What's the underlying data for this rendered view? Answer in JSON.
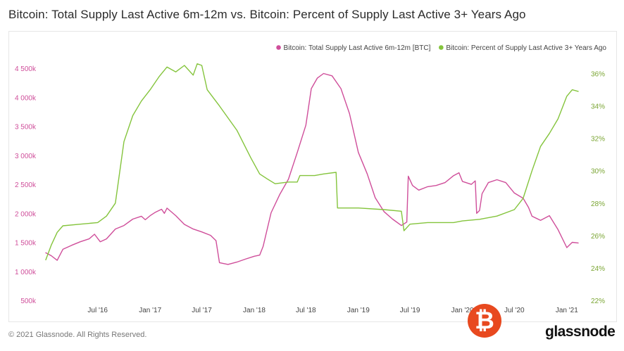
{
  "title": "Bitcoin: Total Supply Last Active 6m-12m vs. Bitcoin: Percent of Supply Last Active 3+ Years Ago",
  "footer": "© 2021 Glassnode. All Rights Reserved.",
  "brand": "glassnode",
  "badge_symbol": "₿",
  "colors": {
    "supply_6m12m": "#cf4e9a",
    "pct_3y": "#84c43c",
    "badge": "#e8491f"
  },
  "chart_data": {
    "type": "line",
    "legend": [
      {
        "label": "Bitcoin: Total Supply Last Active 6m-12m [BTC]",
        "color": "#cf4e9a"
      },
      {
        "label": "Bitcoin: Percent of Supply Last Active 3+ Years Ago",
        "color": "#84c43c"
      }
    ],
    "legend_placement": "top-right",
    "grid": false,
    "x_ticks": [
      "Jul '16",
      "Jan '17",
      "Jul '17",
      "Jan '18",
      "Jul '18",
      "Jan '19",
      "Jul '19",
      "Jan '20",
      "Jul '20",
      "Jan '21"
    ],
    "x_tick_dates": [
      "2016-07-01",
      "2017-01-01",
      "2017-07-01",
      "2018-01-01",
      "2018-07-01",
      "2019-01-01",
      "2019-07-01",
      "2020-01-01",
      "2020-07-01",
      "2021-01-01"
    ],
    "x_range": [
      "2016-01-01",
      "2021-02-10"
    ],
    "y_left": {
      "ticks": [
        "500k",
        "1 000k",
        "1 500k",
        "2 000k",
        "2 500k",
        "3 000k",
        "3 500k",
        "4 000k",
        "4 500k"
      ],
      "range": [
        500000,
        4550000
      ]
    },
    "y_right": {
      "ticks": [
        "22%",
        "24%",
        "26%",
        "28%",
        "30%",
        "32%",
        "34%",
        "36%"
      ],
      "range": [
        22,
        36.5
      ]
    },
    "series": [
      {
        "name": "Bitcoin: Total Supply Last Active 6m-12m [BTC]",
        "axis": "left",
        "color": "#cf4e9a",
        "points": [
          [
            "2016-01-01",
            1320000
          ],
          [
            "2016-01-20",
            1270000
          ],
          [
            "2016-02-10",
            1190000
          ],
          [
            "2016-03-01",
            1380000
          ],
          [
            "2016-04-01",
            1450000
          ],
          [
            "2016-05-01",
            1510000
          ],
          [
            "2016-06-01",
            1560000
          ],
          [
            "2016-06-20",
            1640000
          ],
          [
            "2016-07-10",
            1510000
          ],
          [
            "2016-08-01",
            1560000
          ],
          [
            "2016-09-01",
            1730000
          ],
          [
            "2016-10-01",
            1790000
          ],
          [
            "2016-11-01",
            1900000
          ],
          [
            "2016-12-01",
            1950000
          ],
          [
            "2016-12-15",
            1890000
          ],
          [
            "2017-01-01",
            1960000
          ],
          [
            "2017-01-20",
            2020000
          ],
          [
            "2017-02-10",
            2070000
          ],
          [
            "2017-02-20",
            2000000
          ],
          [
            "2017-03-01",
            2090000
          ],
          [
            "2017-04-01",
            1960000
          ],
          [
            "2017-05-01",
            1810000
          ],
          [
            "2017-06-01",
            1730000
          ],
          [
            "2017-07-01",
            1680000
          ],
          [
            "2017-08-01",
            1620000
          ],
          [
            "2017-08-20",
            1530000
          ],
          [
            "2017-09-01",
            1150000
          ],
          [
            "2017-10-01",
            1120000
          ],
          [
            "2017-11-01",
            1160000
          ],
          [
            "2017-12-01",
            1210000
          ],
          [
            "2018-01-01",
            1260000
          ],
          [
            "2018-01-20",
            1280000
          ],
          [
            "2018-02-01",
            1430000
          ],
          [
            "2018-03-01",
            2010000
          ],
          [
            "2018-04-01",
            2330000
          ],
          [
            "2018-05-01",
            2590000
          ],
          [
            "2018-06-01",
            3050000
          ],
          [
            "2018-07-01",
            3520000
          ],
          [
            "2018-07-20",
            4150000
          ],
          [
            "2018-08-10",
            4330000
          ],
          [
            "2018-09-01",
            4410000
          ],
          [
            "2018-10-01",
            4370000
          ],
          [
            "2018-11-01",
            4150000
          ],
          [
            "2018-12-01",
            3720000
          ],
          [
            "2019-01-01",
            3050000
          ],
          [
            "2019-02-01",
            2680000
          ],
          [
            "2019-03-01",
            2270000
          ],
          [
            "2019-04-01",
            2030000
          ],
          [
            "2019-05-01",
            1900000
          ],
          [
            "2019-06-01",
            1790000
          ],
          [
            "2019-06-20",
            1850000
          ],
          [
            "2019-06-25",
            2640000
          ],
          [
            "2019-07-10",
            2480000
          ],
          [
            "2019-08-01",
            2400000
          ],
          [
            "2019-09-01",
            2460000
          ],
          [
            "2019-10-01",
            2480000
          ],
          [
            "2019-11-01",
            2530000
          ],
          [
            "2019-12-01",
            2650000
          ],
          [
            "2019-12-20",
            2700000
          ],
          [
            "2020-01-01",
            2550000
          ],
          [
            "2020-02-01",
            2500000
          ],
          [
            "2020-02-15",
            2560000
          ],
          [
            "2020-02-20",
            2000000
          ],
          [
            "2020-03-01",
            2050000
          ],
          [
            "2020-03-10",
            2340000
          ],
          [
            "2020-04-01",
            2530000
          ],
          [
            "2020-05-01",
            2580000
          ],
          [
            "2020-06-01",
            2530000
          ],
          [
            "2020-07-01",
            2350000
          ],
          [
            "2020-08-01",
            2260000
          ],
          [
            "2020-08-20",
            2100000
          ],
          [
            "2020-09-01",
            1950000
          ],
          [
            "2020-10-01",
            1880000
          ],
          [
            "2020-11-01",
            1960000
          ],
          [
            "2020-12-01",
            1720000
          ],
          [
            "2021-01-01",
            1410000
          ],
          [
            "2021-01-20",
            1500000
          ],
          [
            "2021-02-10",
            1490000
          ]
        ]
      },
      {
        "name": "Bitcoin: Percent of Supply Last Active 3+ Years Ago",
        "axis": "right",
        "color": "#84c43c",
        "points": [
          [
            "2016-01-01",
            24.5
          ],
          [
            "2016-01-20",
            25.4
          ],
          [
            "2016-02-10",
            26.2
          ],
          [
            "2016-03-01",
            26.6
          ],
          [
            "2016-05-01",
            26.7
          ],
          [
            "2016-07-01",
            26.8
          ],
          [
            "2016-08-01",
            27.2
          ],
          [
            "2016-09-01",
            28.0
          ],
          [
            "2016-10-01",
            31.8
          ],
          [
            "2016-11-01",
            33.4
          ],
          [
            "2016-12-01",
            34.3
          ],
          [
            "2017-01-01",
            35.0
          ],
          [
            "2017-02-01",
            35.8
          ],
          [
            "2017-03-01",
            36.4
          ],
          [
            "2017-04-01",
            36.1
          ],
          [
            "2017-05-01",
            36.5
          ],
          [
            "2017-06-01",
            35.9
          ],
          [
            "2017-06-15",
            36.6
          ],
          [
            "2017-07-01",
            36.5
          ],
          [
            "2017-07-20",
            35.0
          ],
          [
            "2017-09-01",
            34.0
          ],
          [
            "2017-11-01",
            32.5
          ],
          [
            "2017-12-20",
            30.8
          ],
          [
            "2018-01-20",
            29.8
          ],
          [
            "2018-02-15",
            29.5
          ],
          [
            "2018-03-15",
            29.2
          ],
          [
            "2018-05-01",
            29.3
          ],
          [
            "2018-06-01",
            29.3
          ],
          [
            "2018-06-10",
            29.7
          ],
          [
            "2018-08-01",
            29.7
          ],
          [
            "2018-09-01",
            29.8
          ],
          [
            "2018-10-15",
            29.9
          ],
          [
            "2018-10-20",
            27.7
          ],
          [
            "2019-01-01",
            27.7
          ],
          [
            "2019-04-01",
            27.6
          ],
          [
            "2019-06-01",
            27.5
          ],
          [
            "2019-06-10",
            26.3
          ],
          [
            "2019-07-01",
            26.7
          ],
          [
            "2019-09-01",
            26.8
          ],
          [
            "2019-12-01",
            26.8
          ],
          [
            "2020-01-01",
            26.9
          ],
          [
            "2020-03-01",
            27.0
          ],
          [
            "2020-05-01",
            27.2
          ],
          [
            "2020-07-01",
            27.6
          ],
          [
            "2020-08-01",
            28.3
          ],
          [
            "2020-09-01",
            30.0
          ],
          [
            "2020-10-01",
            31.5
          ],
          [
            "2020-11-01",
            32.3
          ],
          [
            "2020-12-01",
            33.2
          ],
          [
            "2021-01-01",
            34.6
          ],
          [
            "2021-01-20",
            35.0
          ],
          [
            "2021-02-10",
            34.9
          ]
        ]
      }
    ]
  }
}
